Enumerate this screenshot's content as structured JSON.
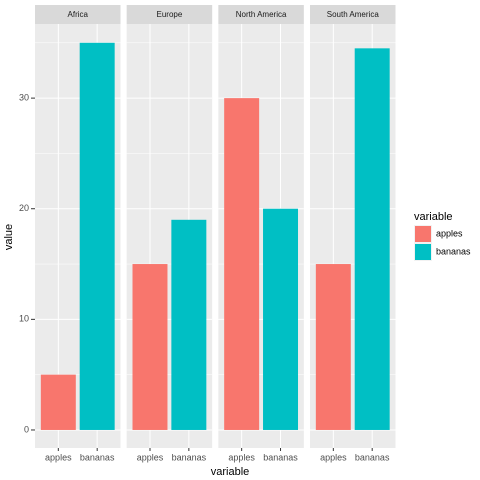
{
  "chart_data": {
    "type": "bar",
    "facets": [
      "Africa",
      "Europe",
      "North America",
      "South America"
    ],
    "categories": [
      "apples",
      "bananas"
    ],
    "colors": [
      "#F8766D",
      "#00BFC4"
    ],
    "values": [
      [
        5,
        35
      ],
      [
        15,
        19
      ],
      [
        30,
        20
      ],
      [
        15,
        34.5
      ]
    ],
    "x_label": "variable",
    "y_label": "value",
    "legend_title": "variable",
    "ylim": [
      -1.63,
      36.7
    ],
    "yticks": [
      0,
      10,
      20,
      30
    ],
    "yminor": [
      5,
      15,
      25,
      35
    ],
    "grid": true
  }
}
